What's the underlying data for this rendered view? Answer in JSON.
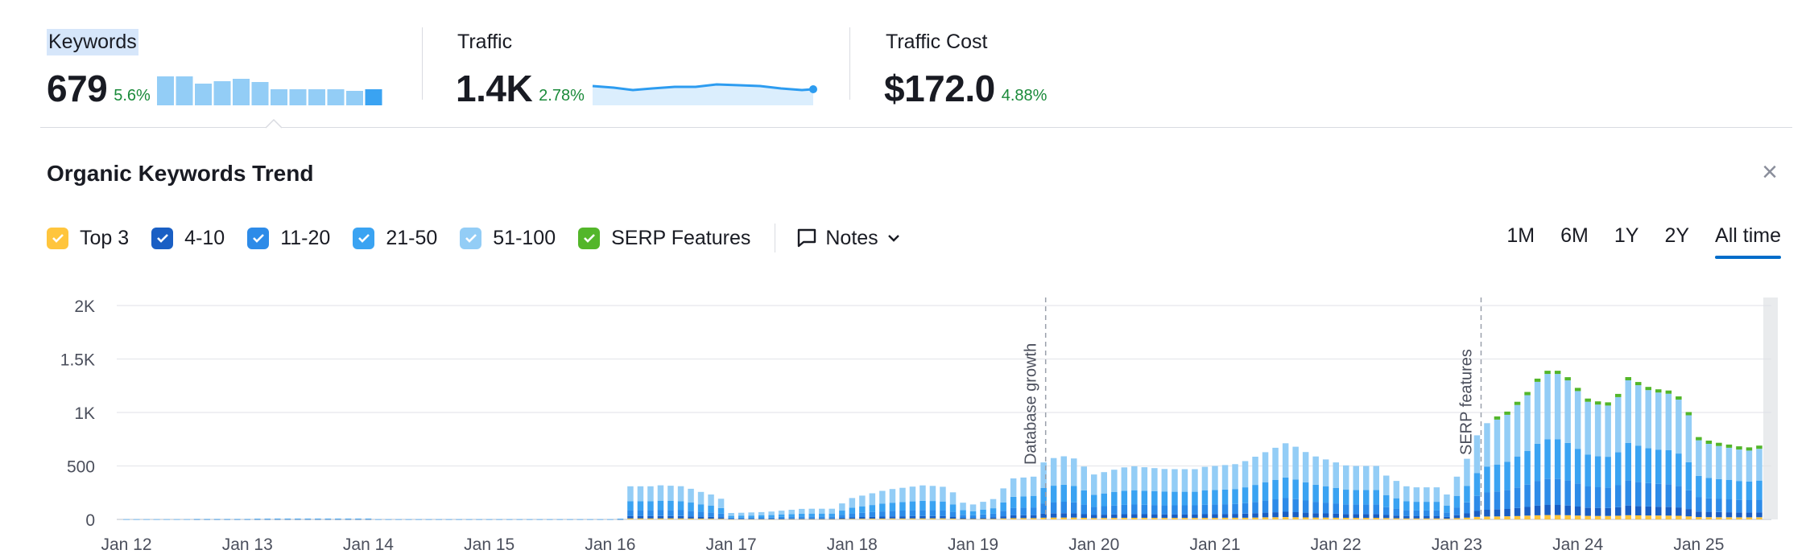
{
  "metrics": [
    {
      "label": "Keywords",
      "value": "679",
      "change": "5.6%",
      "selected": true
    },
    {
      "label": "Traffic",
      "value": "1.4K",
      "change": "2.78%"
    },
    {
      "label": "Traffic Cost",
      "value": "$172.0",
      "change": "4.88%"
    }
  ],
  "colors": {
    "top3": "#ffc53d",
    "r4_10": "#1a5fc4",
    "r11_20": "#2d8be8",
    "r21_50": "#3aa3f2",
    "r51_100": "#93cdf6",
    "serp": "#53b62a",
    "accent": "#006dca",
    "positive": "#1a8a3a"
  },
  "trend": {
    "title": "Organic Keywords Trend",
    "close_icon": "close-icon",
    "legend": [
      {
        "key": "top3",
        "label": "Top 3"
      },
      {
        "key": "r4_10",
        "label": "4-10"
      },
      {
        "key": "r11_20",
        "label": "11-20"
      },
      {
        "key": "r21_50",
        "label": "21-50"
      },
      {
        "key": "r51_100",
        "label": "51-100"
      },
      {
        "key": "serp",
        "label": "SERP Features"
      }
    ],
    "notes_label": "Notes",
    "ranges": [
      "1M",
      "6M",
      "1Y",
      "2Y",
      "All time"
    ],
    "active_range": "All time"
  },
  "chart_data": {
    "type": "bar",
    "stacked": true,
    "y_ticks": [
      "0",
      "500",
      "1K",
      "1.5K",
      "2K"
    ],
    "ylim": [
      0,
      2000
    ],
    "x_ticks": [
      "Jan 12",
      "Jan 13",
      "Jan 14",
      "Jan 15",
      "Jan 16",
      "Jan 17",
      "Jan 18",
      "Jan 19",
      "Jan 20",
      "Jan 21",
      "Jan 22",
      "Jan 23",
      "Jan 24",
      "Jan 25"
    ],
    "annotations": [
      {
        "label": "Database growth",
        "x": 2019.6
      },
      {
        "label": "SERP features",
        "x": 2023.2
      }
    ],
    "grid": true,
    "totals": [
      [
        2012.5,
        5
      ],
      [
        2013.0,
        8
      ],
      [
        2013.3,
        10
      ],
      [
        2014.0,
        3
      ],
      [
        2015.0,
        3
      ],
      [
        2016.0,
        8
      ],
      [
        2016.1,
        310
      ],
      [
        2016.4,
        320
      ],
      [
        2016.6,
        310
      ],
      [
        2016.8,
        240
      ],
      [
        2016.9,
        220
      ],
      [
        2017.0,
        60
      ],
      [
        2017.3,
        70
      ],
      [
        2017.6,
        100
      ],
      [
        2017.9,
        140
      ],
      [
        2018.0,
        200
      ],
      [
        2018.3,
        280
      ],
      [
        2018.6,
        320
      ],
      [
        2018.8,
        300
      ],
      [
        2018.9,
        160
      ],
      [
        2019.0,
        140
      ],
      [
        2019.2,
        200
      ],
      [
        2019.3,
        380
      ],
      [
        2019.5,
        400
      ],
      [
        2019.6,
        560
      ],
      [
        2019.8,
        600
      ],
      [
        2020.0,
        420
      ],
      [
        2020.3,
        500
      ],
      [
        2020.6,
        470
      ],
      [
        2020.9,
        490
      ],
      [
        2021.2,
        520
      ],
      [
        2021.4,
        620
      ],
      [
        2021.6,
        720
      ],
      [
        2021.8,
        600
      ],
      [
        2022.1,
        500
      ],
      [
        2022.4,
        420
      ],
      [
        2022.6,
        300
      ],
      [
        2022.9,
        200
      ],
      [
        2023.0,
        400
      ],
      [
        2023.1,
        600
      ],
      [
        2023.2,
        880
      ],
      [
        2023.4,
        960
      ],
      [
        2023.6,
        1180
      ],
      [
        2023.7,
        1340
      ],
      [
        2023.8,
        1380
      ],
      [
        2023.9,
        1320
      ],
      [
        2024.1,
        1080
      ],
      [
        2024.3,
        1060
      ],
      [
        2024.4,
        1310
      ],
      [
        2024.6,
        1200
      ],
      [
        2024.7,
        1180
      ],
      [
        2024.8,
        1170
      ],
      [
        2024.9,
        1020
      ],
      [
        2025.0,
        740
      ],
      [
        2025.1,
        700
      ],
      [
        2025.2,
        680
      ],
      [
        2025.4,
        640
      ],
      [
        2025.5,
        660
      ]
    ]
  }
}
